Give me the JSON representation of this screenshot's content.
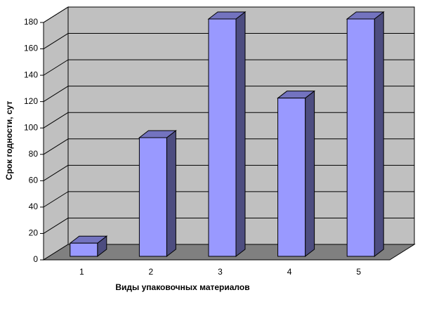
{
  "chart_data": {
    "type": "bar3d",
    "x_label": "Виды упаковочных материалов",
    "y_label": "Срок годности, сут",
    "categories": [
      "1",
      "2",
      "3",
      "4",
      "5"
    ],
    "values": [
      10,
      90,
      180,
      120,
      180
    ],
    "color": "#9999ff",
    "ylim": [
      0,
      180
    ],
    "yticks": [
      0,
      20,
      40,
      60,
      80,
      100,
      120,
      140,
      160,
      180
    ],
    "grid": true
  }
}
